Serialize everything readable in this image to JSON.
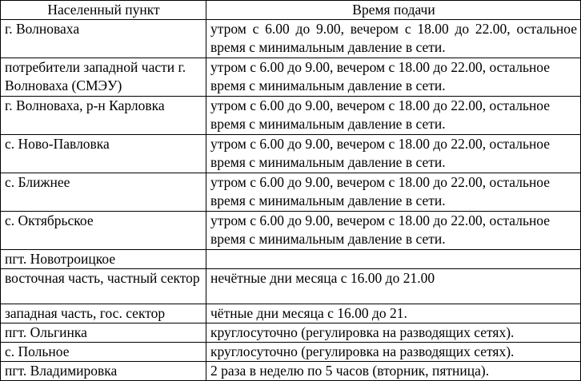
{
  "table": {
    "header": [
      "Населенный пункт",
      "Время подачи"
    ],
    "rows": [
      [
        "г. Волноваха",
        "утром с 6.00 до 9.00, вечером с 18.00 до 22.00, остальное время с минимальным давление в сети."
      ],
      [
        "потребители западной части г. Волноваха (СМЭУ)",
        "утром с 6.00 до 9.00, вечером с 18.00 до 22.00, остальное время с минимальным давление в сети."
      ],
      [
        "г. Волноваха, р-н Карловка",
        "утром с 6.00 до 9.00, вечером с 18.00 до 22.00, остальное время с минимальным давление в сети."
      ],
      [
        "с. Ново-Павловка",
        "утром с 6.00 до 9.00, вечером с 18.00 до 22.00, остальное время с минимальным давление в сети."
      ],
      [
        "с. Ближнее",
        "утром с 6.00 до 9.00, вечером с 18.00 до 22.00, остальное время с минимальным давление в сети."
      ],
      [
        "с. Октябрьское",
        "утром с 6.00 до 9.00, вечером с 18.00 до 22.00, остальное время с минимальным давление в сети."
      ],
      [
        "пгт. Новотроицкое",
        null
      ],
      [
        "восточная часть, частный сектор",
        "нечётные дни месяца с 16.00 до 21.00"
      ],
      [
        "западная часть, гос. сектор",
        "чётные дни месяца с 16.00 до 21."
      ],
      [
        "пгт. Ольгинка",
        "круглосуточно (регулировка на разводящих сетях)."
      ],
      [
        "с. Польное",
        "круглосуточно (регулировка на разводящих сетях)."
      ],
      [
        "пгт. Владимировка",
        "2 раза в неделю по 5 часов (вторник, пятница)."
      ]
    ]
  }
}
